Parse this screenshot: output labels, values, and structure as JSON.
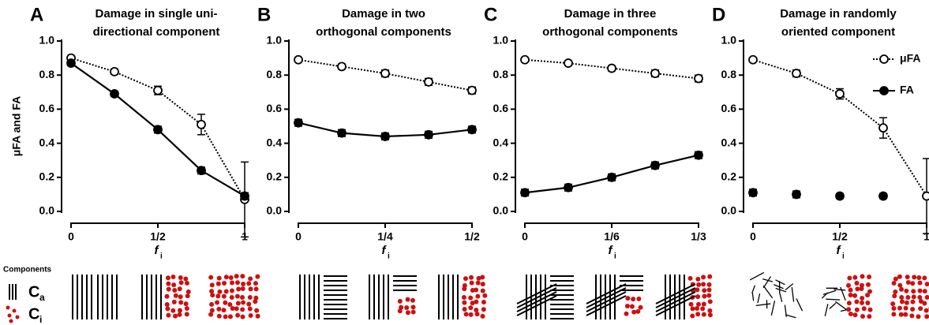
{
  "chart_data": [
    {
      "type": "line",
      "letter": "A",
      "title": [
        "Damage in single uni-",
        "directional component"
      ],
      "ylabel": "μFA and FA",
      "xlabel": "f",
      "xlabel_subscript": "i",
      "x": [
        0,
        0.25,
        0.5,
        0.75,
        1
      ],
      "xlim": [
        0,
        1
      ],
      "xticks": [
        0,
        {
          "value": 0.5,
          "label": "1/2"
        },
        1
      ],
      "ylim": [
        0,
        1
      ],
      "yticks": [
        {
          "value": 0,
          "label": "0.0"
        },
        0.2,
        0.4,
        0.6,
        0.8,
        {
          "value": 1,
          "label": "1.0"
        }
      ],
      "series": [
        {
          "name": "μFA",
          "color": "#000000",
          "marker": "open",
          "linestyle": "dotted",
          "values": [
            0.9,
            0.82,
            0.71,
            0.51,
            0.07
          ],
          "errors": [
            0.01,
            0.015,
            0.025,
            0.06,
            0.22
          ]
        },
        {
          "name": "FA",
          "color": "#000000",
          "marker": "filled",
          "linestyle": "solid",
          "values": [
            0.87,
            0.69,
            0.48,
            0.24,
            0.09
          ],
          "errors": [
            0.015,
            0.015,
            0.02,
            0.02,
            0.02
          ]
        }
      ]
    },
    {
      "type": "line",
      "letter": "B",
      "title": [
        "Damage in two",
        "orthogonal components"
      ],
      "xlabel": "f",
      "xlabel_subscript": "i",
      "x": [
        0,
        0.125,
        0.25,
        0.375,
        0.5
      ],
      "xlim": [
        0,
        0.5
      ],
      "xticks": [
        0,
        {
          "value": 0.25,
          "label": "1/4"
        },
        {
          "value": 0.5,
          "label": "1/2"
        }
      ],
      "ylim": [
        0,
        1
      ],
      "yticks": [
        {
          "value": 0,
          "label": "0.0"
        },
        0.2,
        0.4,
        0.6,
        0.8,
        {
          "value": 1,
          "label": "1.0"
        }
      ],
      "series": [
        {
          "name": "μFA",
          "color": "#000000",
          "marker": "open",
          "linestyle": "dotted",
          "values": [
            0.89,
            0.85,
            0.81,
            0.76,
            0.71
          ],
          "errors": [
            0.01,
            0.015,
            0.02,
            0.02,
            0.02
          ]
        },
        {
          "name": "FA",
          "color": "#000000",
          "marker": "filled",
          "linestyle": "solid",
          "values": [
            0.52,
            0.46,
            0.44,
            0.45,
            0.48
          ],
          "errors": [
            0.02,
            0.02,
            0.02,
            0.02,
            0.02
          ]
        }
      ]
    },
    {
      "type": "line",
      "letter": "C",
      "title": [
        "Damage in three",
        "orthogonal components"
      ],
      "xlabel": "f",
      "xlabel_subscript": "i",
      "x": [
        0,
        0.0833,
        0.1667,
        0.25,
        0.3333
      ],
      "xlim": [
        0,
        0.3333
      ],
      "xticks": [
        0,
        {
          "value": 0.1667,
          "label": "1/6"
        },
        {
          "value": 0.3333,
          "label": "1/3"
        }
      ],
      "ylim": [
        0,
        1
      ],
      "yticks": [
        {
          "value": 0,
          "label": "0.0"
        },
        0.2,
        0.4,
        0.6,
        0.8,
        {
          "value": 1,
          "label": "1.0"
        }
      ],
      "series": [
        {
          "name": "μFA",
          "color": "#000000",
          "marker": "open",
          "linestyle": "dotted",
          "values": [
            0.89,
            0.87,
            0.84,
            0.81,
            0.78
          ],
          "errors": [
            0.01,
            0.01,
            0.015,
            0.02,
            0.02
          ]
        },
        {
          "name": "FA",
          "color": "#000000",
          "marker": "filled",
          "linestyle": "solid",
          "values": [
            0.11,
            0.14,
            0.2,
            0.27,
            0.33
          ],
          "errors": [
            0.02,
            0.02,
            0.02,
            0.02,
            0.02
          ]
        }
      ]
    },
    {
      "type": "line",
      "letter": "D",
      "title": [
        "Damage in randomly",
        "oriented component"
      ],
      "xlabel": "f",
      "xlabel_subscript": "i",
      "legend": "upper right",
      "x": [
        0,
        0.25,
        0.5,
        0.75,
        1
      ],
      "xlim": [
        0,
        1
      ],
      "xticks": [
        0,
        {
          "value": 0.5,
          "label": "1/2"
        },
        1
      ],
      "ylim": [
        0,
        1
      ],
      "yticks": [
        {
          "value": 0,
          "label": "0.0"
        },
        0.2,
        0.4,
        0.6,
        0.8,
        {
          "value": 1,
          "label": "1.0"
        }
      ],
      "series": [
        {
          "name": "μFA",
          "color": "#000000",
          "marker": "open",
          "linestyle": "dotted",
          "values": [
            0.89,
            0.81,
            0.69,
            0.49,
            0.09
          ],
          "errors": [
            0.01,
            0.02,
            0.03,
            0.06,
            0.22
          ]
        },
        {
          "name": "FA",
          "color": "#000000",
          "marker": "filled",
          "linestyle": "none",
          "values": [
            0.11,
            0.1,
            0.09,
            0.09,
            null
          ],
          "errors": [
            0.02,
            0.02,
            0.015,
            0.015,
            null
          ]
        }
      ]
    }
  ],
  "components": {
    "title": "Components",
    "items": [
      {
        "symbol": "C",
        "subscript": "a"
      },
      {
        "symbol": "C",
        "subscript": "i"
      }
    ]
  }
}
